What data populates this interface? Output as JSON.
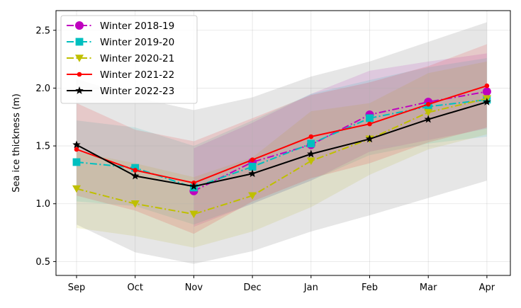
{
  "chart_data": {
    "type": "line",
    "ylabel": "Sea ice thickness (m)",
    "xlabel": "",
    "categories": [
      "Sep",
      "Oct",
      "Nov",
      "Dec",
      "Jan",
      "Feb",
      "Mar",
      "Apr"
    ],
    "ylim": [
      0.38,
      2.67
    ],
    "yticks": [
      "0.5",
      "1.0",
      "1.5",
      "2.0",
      "2.5"
    ],
    "grid": true,
    "legend_position": "top-left",
    "series": [
      {
        "name": "Winter 2018-19",
        "color": "#bf00bf",
        "linestyle": "dashdot",
        "marker": "circle",
        "values": [
          null,
          null,
          1.11,
          1.36,
          1.51,
          1.77,
          1.88,
          1.97
        ],
        "band_upper": [
          null,
          null,
          1.48,
          1.7,
          1.95,
          2.15,
          2.23,
          2.3
        ],
        "band_lower": [
          null,
          null,
          0.8,
          1.0,
          1.2,
          1.45,
          1.55,
          1.65
        ]
      },
      {
        "name": "Winter 2019-20",
        "color": "#00bfbf",
        "linestyle": "dashdot",
        "marker": "square",
        "values": [
          1.36,
          1.31,
          1.14,
          1.32,
          1.52,
          1.74,
          1.84,
          1.9
        ],
        "band_upper": [
          1.72,
          1.66,
          1.5,
          1.72,
          1.95,
          2.07,
          2.18,
          2.26
        ],
        "band_lower": [
          1.02,
          0.98,
          0.82,
          1.0,
          1.2,
          1.42,
          1.52,
          1.58
        ]
      },
      {
        "name": "Winter 2020-21",
        "color": "#bfbf00",
        "linestyle": "dashdot",
        "marker": "triangle-down",
        "values": [
          1.13,
          1.0,
          0.91,
          1.07,
          1.37,
          1.56,
          1.79,
          1.91
        ],
        "band_upper": [
          1.45,
          1.35,
          1.23,
          1.4,
          1.8,
          1.87,
          2.13,
          2.23
        ],
        "band_lower": [
          0.79,
          0.72,
          0.62,
          0.76,
          0.97,
          1.25,
          1.47,
          1.6
        ]
      },
      {
        "name": "Winter 2021-22",
        "color": "#ff0000",
        "linestyle": "solid",
        "marker": "dot",
        "values": [
          1.47,
          1.29,
          1.18,
          1.38,
          1.58,
          1.69,
          1.86,
          2.02
        ],
        "band_upper": [
          1.87,
          1.64,
          1.54,
          1.74,
          1.94,
          2.05,
          2.19,
          2.38
        ],
        "band_lower": [
          1.07,
          0.94,
          0.74,
          1.02,
          1.22,
          1.35,
          1.53,
          1.66
        ]
      },
      {
        "name": "Winter 2022-23",
        "color": "#000000",
        "linestyle": "solid",
        "marker": "star",
        "values": [
          1.51,
          1.24,
          1.15,
          1.26,
          1.43,
          1.56,
          1.73,
          1.88
        ],
        "band_upper": [
          2.08,
          1.92,
          1.81,
          1.92,
          2.1,
          2.23,
          2.4,
          2.57
        ],
        "band_lower": [
          0.82,
          0.58,
          0.48,
          0.59,
          0.76,
          0.9,
          1.05,
          1.2
        ]
      }
    ]
  }
}
